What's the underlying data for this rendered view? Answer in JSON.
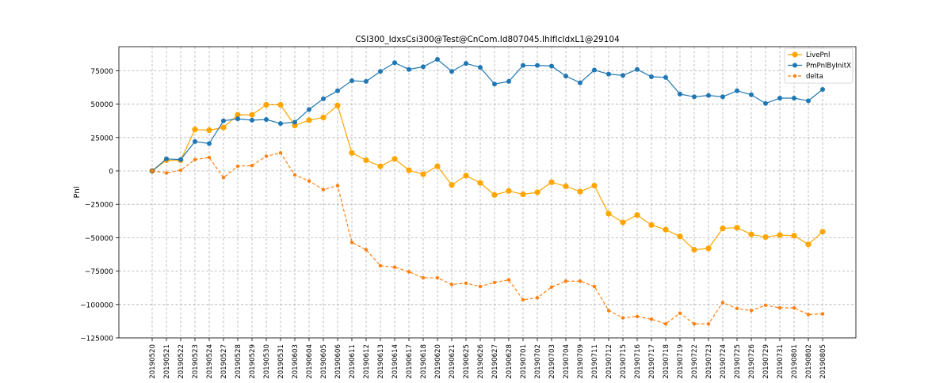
{
  "chart_data": {
    "type": "line",
    "title": "CSI300_IdxsCsi300@Test@CnCom.Id807045.IhIfIcIdxL1@29104",
    "xlabel": "",
    "ylabel": "Pnl",
    "ylim": [
      -125000,
      93000
    ],
    "yticks": [
      -125000,
      -100000,
      -75000,
      -50000,
      -25000,
      0,
      25000,
      50000,
      75000
    ],
    "ytick_labels": [
      "−125000",
      "−100000",
      "−75000",
      "−50000",
      "−25000",
      "0",
      "25000",
      "50000",
      "75000"
    ],
    "grid": true,
    "legend_position": "top-right",
    "categories": [
      "20190520",
      "20190521",
      "20190522",
      "20190523",
      "20190524",
      "20190527",
      "20190528",
      "20190529",
      "20190530",
      "20190531",
      "20190603",
      "20190604",
      "20190605",
      "20190606",
      "20190611",
      "20190612",
      "20190613",
      "20190614",
      "20190617",
      "20190618",
      "20190620",
      "20190621",
      "20190625",
      "20190626",
      "20190627",
      "20190628",
      "20190701",
      "20190702",
      "20190703",
      "20190704",
      "20190709",
      "20190711",
      "20190712",
      "20190715",
      "20190716",
      "20190717",
      "20190718",
      "20190719",
      "20190722",
      "20190723",
      "20190724",
      "20190725",
      "20190726",
      "20190729",
      "20190731",
      "20190801",
      "20190802",
      "20190805"
    ],
    "series": [
      {
        "name": "LivePnl",
        "color": "#ffa500",
        "style": "solid",
        "marker_size": 3.6,
        "values": [
          0,
          8000,
          8000,
          31000,
          30500,
          32500,
          42000,
          42000,
          49500,
          49500,
          34000,
          38000,
          40000,
          49000,
          13500,
          8000,
          3500,
          9000,
          500,
          -2500,
          3500,
          -10500,
          -3500,
          -9000,
          -18000,
          -15000,
          -17500,
          -16000,
          -8500,
          -11500,
          -15500,
          -11000,
          -32000,
          -38500,
          -33000,
          -40500,
          -44000,
          -49000,
          -59000,
          -58000,
          -43000,
          -42500,
          -47500,
          -49500,
          -48000,
          -48500,
          -55000,
          -45500
        ]
      },
      {
        "name": "PmPnlByInitX",
        "color": "#1f77b4",
        "style": "solid",
        "marker_size": 3,
        "values": [
          0,
          9000,
          8500,
          22000,
          20500,
          37500,
          39000,
          38000,
          38500,
          35500,
          36500,
          46000,
          54000,
          60000,
          67500,
          67000,
          74500,
          81000,
          76000,
          78000,
          83500,
          74500,
          80500,
          77500,
          65000,
          67000,
          79000,
          79000,
          78500,
          71000,
          66000,
          75500,
          72500,
          71500,
          76000,
          70500,
          70000,
          57500,
          55500,
          56500,
          55500,
          60000,
          57000,
          50500,
          54500,
          54500,
          52500,
          61000
        ]
      },
      {
        "name": "delta",
        "color": "#ff7f0e",
        "style": "dashed",
        "marker_size": 2.2,
        "values": [
          0,
          -1500,
          500,
          8500,
          10000,
          -5000,
          3500,
          4000,
          11000,
          13500,
          -3000,
          -7500,
          -14000,
          -11000,
          -53500,
          -59000,
          -71000,
          -72000,
          -75500,
          -80000,
          -80000,
          -85000,
          -84000,
          -86500,
          -83500,
          -81500,
          -96500,
          -95000,
          -87000,
          -82500,
          -82500,
          -86500,
          -104500,
          -110000,
          -109000,
          -111000,
          -114500,
          -106500,
          -114500,
          -114500,
          -98500,
          -103000,
          -104500,
          -100500,
          -102500,
          -102500,
          -107500,
          -107000
        ]
      }
    ]
  }
}
